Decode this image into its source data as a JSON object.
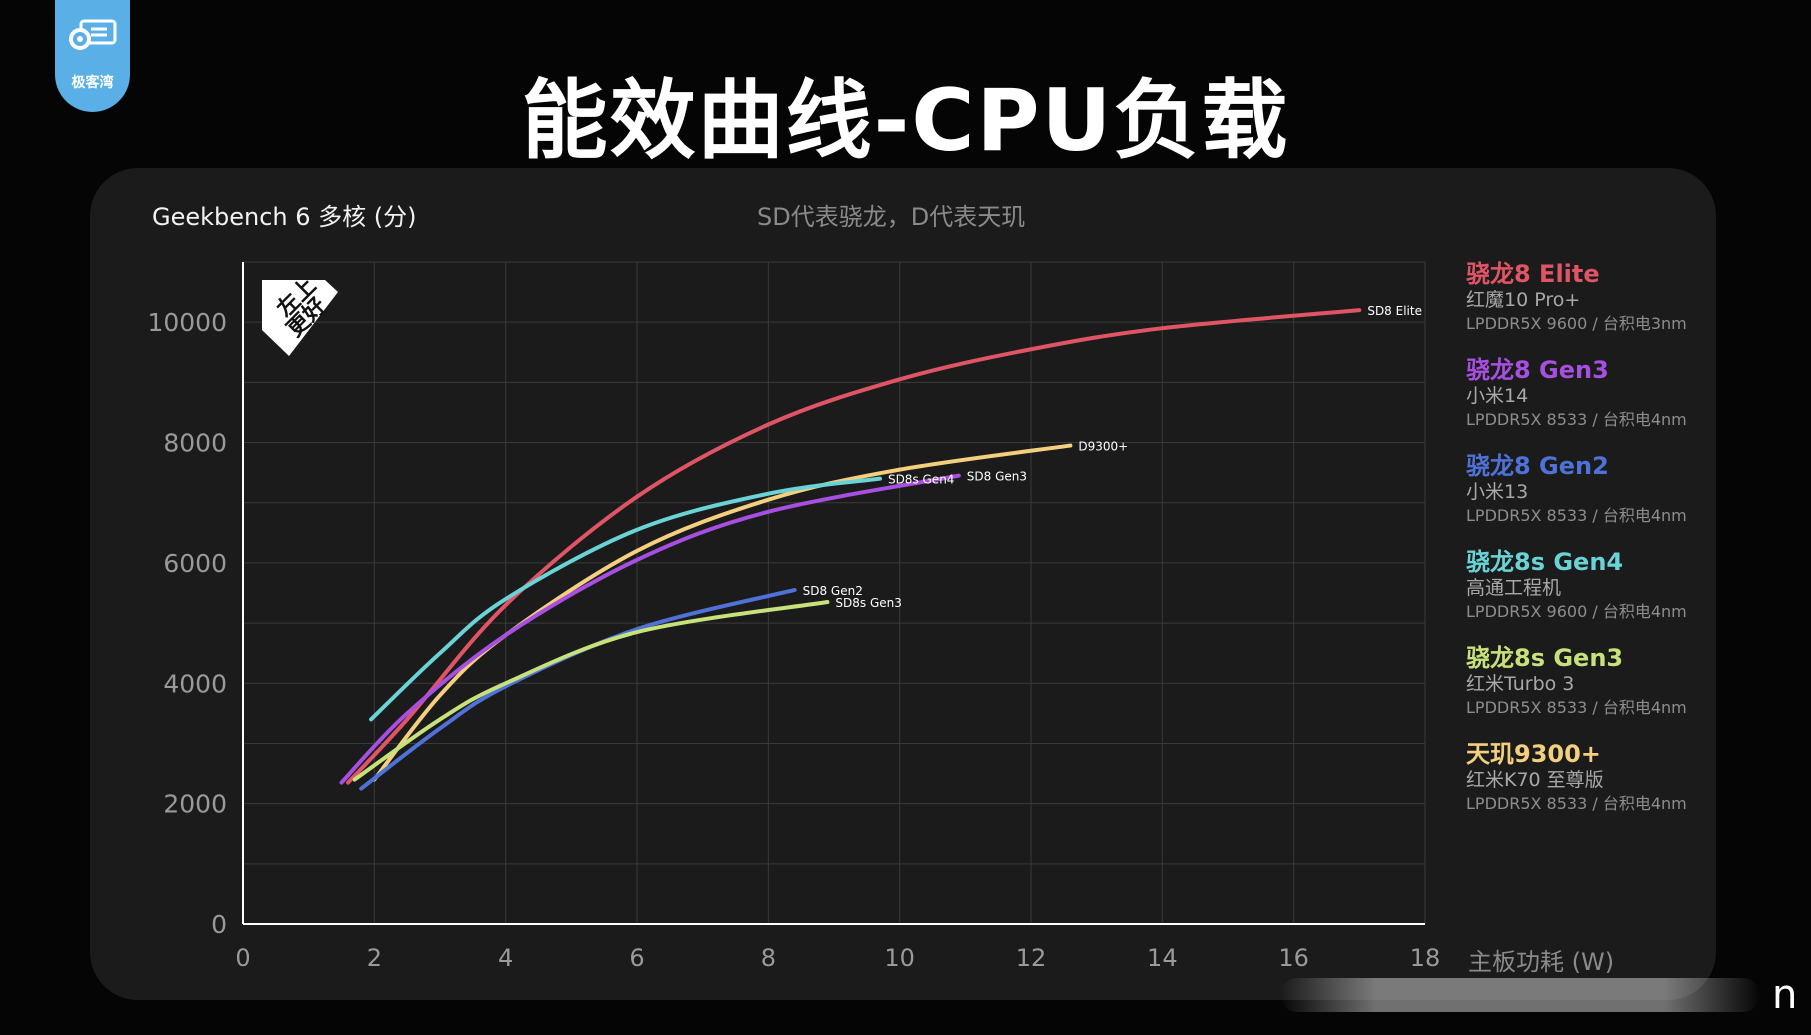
{
  "header": {
    "logo_text": "极客湾",
    "title": "能效曲线-CPU负载"
  },
  "panel": {
    "chart_name": "Geekbench 6  多核 (分)",
    "subtitle": "SD代表骁龙，D代表天玑",
    "badge": "左上\n更好",
    "x_axis_label": "主板功耗 (W)"
  },
  "legend": [
    {
      "title": "骁龙8 Elite",
      "device": "红魔10 Pro+",
      "spec": "LPDDR5X 9600 / 台积电3nm",
      "color": "#e05566"
    },
    {
      "title": "骁龙8 Gen3",
      "device": "小米14",
      "spec": "LPDDR5X 8533 / 台积电4nm",
      "color": "#a64fe0"
    },
    {
      "title": "骁龙8 Gen2",
      "device": "小米13",
      "spec": "LPDDR5X 8533 / 台积电4nm",
      "color": "#4f72d8"
    },
    {
      "title": "骁龙8s Gen4",
      "device": "高通工程机",
      "spec": "LPDDR5X 9600 / 台积电4nm",
      "color": "#6ad3d6"
    },
    {
      "title": "骁龙8s Gen3",
      "device": "红米Turbo 3",
      "spec": "LPDDR5X 8533 / 台积电4nm",
      "color": "#c7e27a"
    },
    {
      "title": "天玑9300+",
      "device": "红米K70 至尊版",
      "spec": "LPDDR5X 8533 / 台积电4nm",
      "color": "#f3cf7e"
    }
  ],
  "chart_data": {
    "type": "line",
    "xlabel": "主板功耗 (W)",
    "ylabel": "Geekbench 6  多核 (分)",
    "xlim": [
      0,
      18
    ],
    "ylim": [
      0,
      11000
    ],
    "xticks": [
      0,
      2,
      4,
      6,
      8,
      10,
      12,
      14,
      16,
      18
    ],
    "yticks": [
      0,
      2000,
      4000,
      6000,
      8000,
      10000
    ],
    "grid": true,
    "series": [
      {
        "name": "SD8 Elite",
        "label": "SD8 Elite",
        "color": "#e05566",
        "x": [
          1.6,
          2.5,
          4.0,
          6.0,
          8.0,
          10.0,
          12.0,
          14.0,
          17.0
        ],
        "y": [
          2350,
          3400,
          5300,
          7100,
          8300,
          9050,
          9550,
          9900,
          10200
        ]
      },
      {
        "name": "D9300+",
        "label": "D9300+",
        "color": "#f3cf7e",
        "x": [
          2.0,
          3.0,
          4.0,
          6.0,
          8.0,
          10.0,
          12.6
        ],
        "y": [
          2400,
          3800,
          4800,
          6200,
          7050,
          7550,
          7950
        ]
      },
      {
        "name": "SD8s Gen4",
        "label": "SD8s Gen4",
        "color": "#6ad3d6",
        "x": [
          1.95,
          3.0,
          4.0,
          6.0,
          8.0,
          9.7
        ],
        "y": [
          3400,
          4500,
          5400,
          6550,
          7150,
          7400
        ]
      },
      {
        "name": "SD8 Gen3",
        "label": "SD8 Gen3",
        "color": "#a64fe0",
        "x": [
          1.5,
          2.5,
          4.0,
          6.0,
          8.0,
          10.9
        ],
        "y": [
          2350,
          3500,
          4800,
          6050,
          6850,
          7450
        ]
      },
      {
        "name": "SD8 Gen2",
        "label": "SD8 Gen2",
        "color": "#4f72d8",
        "x": [
          1.8,
          3.0,
          4.0,
          6.0,
          8.4
        ],
        "y": [
          2250,
          3250,
          3950,
          4900,
          5550
        ]
      },
      {
        "name": "SD8s Gen3",
        "label": "SD8s Gen3",
        "color": "#c7e27a",
        "x": [
          1.7,
          3.0,
          4.0,
          6.0,
          8.9
        ],
        "y": [
          2400,
          3400,
          4000,
          4850,
          5350
        ]
      }
    ]
  }
}
